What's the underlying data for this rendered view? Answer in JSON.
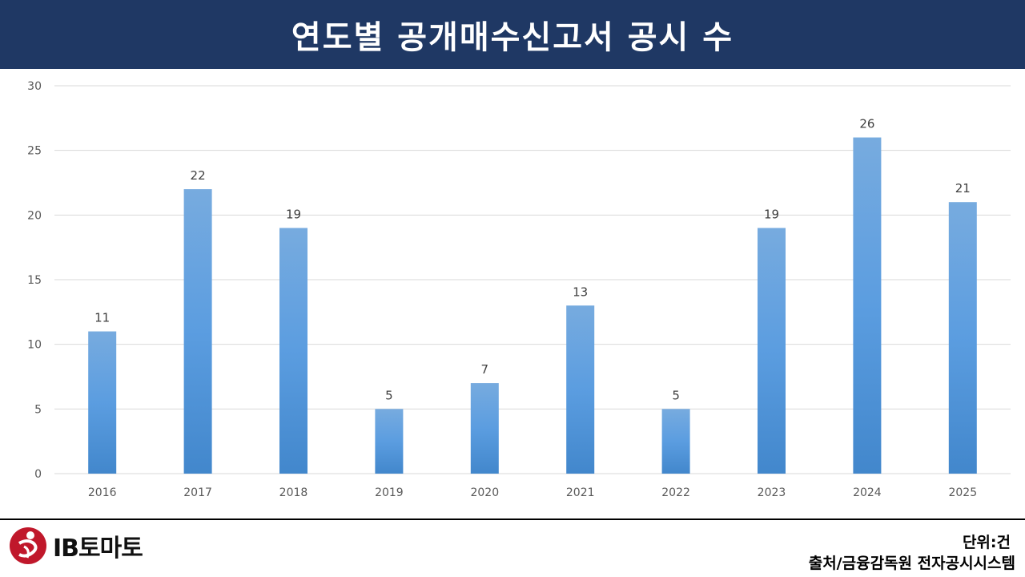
{
  "header": {
    "title": "연도별 공개매수신고서 공시 수"
  },
  "brand": {
    "logo_text": "IB토마토"
  },
  "footer": {
    "unit": "단위:건",
    "source": "출처/금융감독원 전자공시시스템"
  },
  "colors": {
    "header_bg": "#1f3864",
    "bar_light": "#77abdf",
    "bar_mid": "#5b9de0",
    "bar_dark": "#4287cc",
    "logo_red": "#c0182b"
  },
  "chart_data": {
    "type": "bar",
    "title": "연도별 공개매수신고서 공시 수",
    "categories": [
      "2016",
      "2017",
      "2018",
      "2019",
      "2020",
      "2021",
      "2022",
      "2023",
      "2024",
      "2025"
    ],
    "values": [
      11,
      22,
      19,
      5,
      7,
      13,
      5,
      19,
      26,
      21
    ],
    "ylim": [
      0,
      30
    ],
    "yticks": [
      0,
      5,
      10,
      15,
      20,
      25,
      30
    ],
    "grid": true,
    "data_labels": true,
    "legend": "none"
  }
}
